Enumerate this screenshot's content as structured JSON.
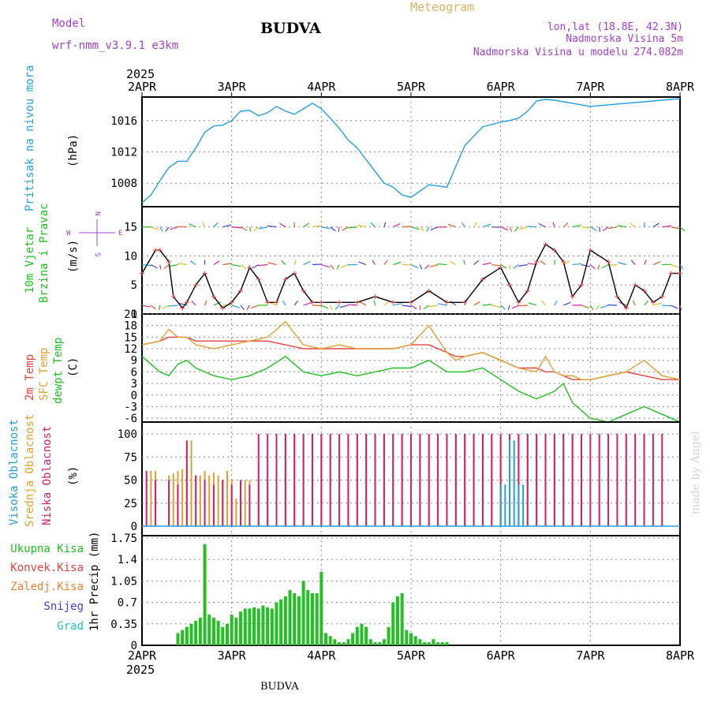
{
  "header": {
    "model_label": "Model",
    "model_name": "wrf-nmm_v3.9.1 e3km",
    "station": "BUDVA",
    "title": "Meteogram",
    "lonlat": "lon,lat (18.8E, 42.3N)",
    "altitude": "Nadmorska Visina 5m",
    "model_altitude": "Nadmorska Visina u modelu 274.082m",
    "footer_station": "BUDVA",
    "watermark": "made by Angel"
  },
  "colors": {
    "pressure": "#22a0e0",
    "temp2m": "#e84040",
    "sfctemp": "#e0a030",
    "dewpoint": "#20c020",
    "visoka": "#22a0e0",
    "srednja": "#e0a030",
    "niska": "#d0206a",
    "precip": "#22c022",
    "grid": "#888888",
    "purple": "#a040d0"
  },
  "chart_data": [
    {
      "type": "line",
      "panel": "pressure",
      "ylabel_blue": "Pritisak na nivou mora",
      "ylabel_black": "(hPa)",
      "yticks": [
        1008,
        1012,
        1016
      ],
      "ylim": [
        1005,
        1019
      ],
      "x_day_labels": [
        "2APR",
        "3APR",
        "4APR",
        "5APR",
        "6APR",
        "7APR",
        "8APR"
      ],
      "x_year": "2025",
      "x": [
        0,
        0.1,
        0.2,
        0.3,
        0.4,
        0.5,
        0.6,
        0.7,
        0.8,
        0.9,
        1.0,
        1.1,
        1.2,
        1.3,
        1.4,
        1.5,
        1.6,
        1.7,
        1.8,
        1.9,
        2.0,
        2.1,
        2.2,
        2.3,
        2.4,
        2.5,
        2.6,
        2.7,
        2.8,
        2.9,
        3.0,
        3.2,
        3.4,
        3.6,
        3.8,
        4.0,
        4.1,
        4.2,
        4.3,
        4.4,
        4.5,
        4.6,
        4.7,
        4.8,
        4.9,
        5.0,
        5.1,
        5.2,
        5.3,
        5.4,
        5.5,
        5.6,
        5.7,
        5.8,
        5.9,
        6.0
      ],
      "values": [
        1005.5,
        1006.5,
        1008.3,
        1010.0,
        1010.8,
        1010.8,
        1012.5,
        1014.5,
        1015.3,
        1015.4,
        1016.0,
        1017.2,
        1017.3,
        1016.6,
        1017.0,
        1017.8,
        1017.2,
        1016.8,
        1017.5,
        1018.2,
        1017.5,
        1016.3,
        1015.0,
        1013.5,
        1012.5,
        1011.0,
        1009.5,
        1008.0,
        1007.5,
        1006.5,
        1006.2,
        1007.8,
        1007.5,
        1012.8,
        1015.2,
        1015.8,
        1016.0,
        1016.3,
        1017.2,
        1018.5,
        1018.7,
        1018.6,
        1018.4,
        1018.2,
        1018.0,
        1017.8,
        1017.9,
        1018.0,
        1018.1,
        1018.2,
        1018.3,
        1018.4,
        1018.5,
        1018.6,
        1018.7,
        1018.8
      ]
    },
    {
      "type": "line",
      "panel": "wind",
      "ylabel_green": "10m Vjetar",
      "ylabel_green2": "Brzina i Pravac",
      "ylabel_black": "(m/s)",
      "compass": [
        "N",
        "W",
        "E",
        "S"
      ],
      "yticks": [
        0,
        5,
        10,
        15
      ],
      "ylim": [
        0,
        18.5
      ],
      "x": [
        0,
        0.15,
        0.2,
        0.3,
        0.35,
        0.45,
        0.5,
        0.6,
        0.7,
        0.8,
        0.9,
        1.0,
        1.1,
        1.2,
        1.3,
        1.4,
        1.5,
        1.6,
        1.7,
        1.8,
        1.9,
        2.0,
        2.2,
        2.4,
        2.6,
        2.8,
        3.0,
        3.2,
        3.4,
        3.6,
        3.8,
        4.0,
        4.1,
        4.2,
        4.3,
        4.4,
        4.5,
        4.6,
        4.7,
        4.8,
        4.9,
        5.0,
        5.2,
        5.3,
        5.4,
        5.5,
        5.6,
        5.7,
        5.8,
        5.9,
        6.0
      ],
      "values": [
        7,
        11,
        11,
        9,
        3,
        1,
        2,
        5,
        7,
        3,
        1,
        2,
        4,
        8,
        6,
        2,
        2,
        6,
        7,
        4,
        2,
        2,
        2,
        2,
        3,
        2,
        2,
        4,
        2,
        2,
        6,
        8,
        5,
        2,
        4,
        9,
        12,
        11,
        9,
        3,
        5,
        11,
        9,
        3,
        1,
        5,
        4,
        2,
        3,
        7,
        7
      ]
    },
    {
      "type": "line",
      "panel": "temperature",
      "ylabel_red": "2m Temp",
      "ylabel_orange": "SFC Temp",
      "ylabel_green": "dewpt Temp",
      "ylabel_black": "(C)",
      "yticks": [
        -6,
        -3,
        0,
        3,
        6,
        9,
        12,
        15,
        18,
        21
      ],
      "ylim": [
        -7,
        21
      ],
      "x": [
        0,
        0.2,
        0.3,
        0.4,
        0.5,
        0.6,
        0.8,
        1.0,
        1.2,
        1.4,
        1.6,
        1.8,
        2.0,
        2.2,
        2.4,
        2.6,
        2.8,
        3.0,
        3.2,
        3.4,
        3.5,
        3.6,
        3.8,
        4.0,
        4.2,
        4.4,
        4.5,
        4.6,
        4.7,
        4.8,
        4.9,
        5.0,
        5.2,
        5.4,
        5.6,
        5.8,
        6.0
      ],
      "series": [
        {
          "name": "2m Temp",
          "values": [
            13,
            14,
            15,
            15,
            15,
            14,
            14,
            14,
            14,
            14,
            13,
            12,
            12,
            12,
            12,
            12,
            12,
            13,
            13,
            11,
            10,
            10,
            11,
            9,
            7,
            7,
            6,
            6,
            5,
            4,
            4,
            4,
            5,
            6,
            5,
            4,
            4
          ]
        },
        {
          "name": "SFC Temp",
          "values": [
            13,
            14,
            17,
            15,
            15,
            13,
            12,
            13,
            14,
            15,
            19,
            13,
            12,
            13,
            12,
            12,
            12,
            13,
            18,
            11,
            9,
            10,
            11,
            9,
            7,
            6,
            10,
            6,
            5,
            5,
            4,
            4,
            5,
            6,
            9,
            5,
            4
          ]
        },
        {
          "name": "dewpt Temp",
          "values": [
            10,
            6,
            5,
            8,
            9,
            7,
            5,
            4,
            5,
            7,
            10,
            6,
            5,
            6,
            5,
            6,
            7,
            7,
            9,
            6,
            6,
            6,
            7,
            4,
            1,
            -1,
            0,
            1,
            3,
            -2,
            -4,
            -6,
            -7,
            -5,
            -3,
            -5,
            -7
          ]
        }
      ]
    },
    {
      "type": "bar",
      "panel": "cloud",
      "ylabel_blue": "Visoka Oblacnost",
      "ylabel_orange": "Srednja Oblacnost",
      "ylabel_magenta": "Niska Oblacnost",
      "ylabel_black": "(%)",
      "yticks": [
        0,
        25,
        50,
        75,
        100
      ],
      "ylim": [
        0,
        100
      ],
      "series": [
        {
          "name": "Srednja",
          "x": [
            0.1,
            0.15,
            0.3,
            0.35,
            0.4,
            0.45,
            0.5,
            0.55,
            0.6,
            0.65,
            0.7,
            0.75,
            0.8,
            0.85,
            0.9,
            0.95,
            1.0,
            1.05,
            1.1,
            1.15,
            1.2,
            1.3,
            1.4,
            1.5,
            1.6,
            1.7,
            1.8,
            1.9,
            2.0,
            2.1,
            2.2,
            2.3,
            2.4,
            2.5,
            2.6,
            2.7,
            2.8,
            2.9,
            3.0,
            3.1,
            3.2,
            3.3,
            3.4,
            3.5,
            3.6,
            3.7,
            3.8,
            3.9,
            4.0,
            4.1,
            4.2,
            4.3,
            4.4,
            4.5,
            4.6,
            4.7,
            4.8,
            4.9
          ],
          "values": [
            60,
            60,
            55,
            57,
            60,
            62,
            93,
            93,
            55,
            55,
            60,
            55,
            58,
            55,
            50,
            60,
            50,
            30,
            50,
            50,
            50,
            50,
            50,
            100,
            100,
            100,
            100,
            100,
            100,
            100,
            100,
            100,
            100,
            100,
            100,
            100,
            100,
            100,
            100,
            100,
            100,
            100,
            100,
            100,
            100,
            100,
            100,
            100,
            100,
            100,
            100,
            100,
            100,
            100,
            100,
            100,
            100,
            100
          ]
        },
        {
          "name": "Niska",
          "x": [
            0.05,
            0.15,
            0.3,
            0.4,
            0.5,
            0.6,
            0.7,
            0.8,
            0.9,
            1.0,
            1.1,
            1.2,
            1.3,
            1.4,
            1.5,
            1.6,
            1.7,
            1.8,
            1.9,
            2.0,
            2.1,
            2.2,
            2.3,
            2.4,
            2.5,
            2.6,
            2.7,
            2.8,
            2.9,
            3.0,
            3.1,
            3.2,
            3.3,
            3.4,
            3.5,
            3.6,
            3.7,
            3.8,
            3.9,
            4.0,
            4.1,
            4.2,
            4.3,
            4.4,
            4.5,
            4.6,
            4.7,
            4.8,
            4.9,
            5.0,
            5.1,
            5.2,
            5.3,
            5.4,
            5.5,
            5.6,
            5.7,
            5.8
          ],
          "values": [
            60,
            50,
            50,
            45,
            93,
            55,
            50,
            45,
            50,
            45,
            50,
            45,
            100,
            100,
            100,
            100,
            100,
            100,
            100,
            100,
            100,
            100,
            100,
            100,
            100,
            100,
            100,
            100,
            100,
            100,
            100,
            100,
            100,
            100,
            100,
            100,
            100,
            100,
            100,
            100,
            100,
            100,
            100,
            100,
            100,
            100,
            100,
            100,
            100,
            100,
            100,
            100,
            100,
            100,
            100,
            100,
            100,
            100
          ]
        },
        {
          "name": "Visoka",
          "x": [
            4.0,
            4.05,
            4.1,
            4.15,
            4.2,
            4.25
          ],
          "values": [
            45,
            45,
            93,
            93,
            45,
            45
          ]
        }
      ]
    },
    {
      "type": "bar",
      "panel": "precipitation",
      "legend": [
        "Ukupna Kisa",
        "Konvek.Kisa",
        "Zaledj.Kisa",
        "Snijeg",
        "Grad"
      ],
      "ylabel_black": "1hr Precip (mm)",
      "yticks": [
        0.35,
        0.7,
        1.05,
        1.4,
        1.75
      ],
      "ylim": [
        0,
        1.75
      ],
      "x_day_labels": [
        "2APR",
        "3APR",
        "4APR",
        "5APR",
        "6APR",
        "7APR",
        "8APR"
      ],
      "x_year": "2025",
      "x": [
        0.4,
        0.45,
        0.5,
        0.55,
        0.6,
        0.65,
        0.7,
        0.75,
        0.8,
        0.85,
        0.9,
        0.95,
        1.0,
        1.05,
        1.1,
        1.15,
        1.2,
        1.25,
        1.3,
        1.35,
        1.4,
        1.45,
        1.5,
        1.55,
        1.6,
        1.65,
        1.7,
        1.75,
        1.8,
        1.85,
        1.9,
        1.95,
        2.0,
        2.05,
        2.1,
        2.15,
        2.2,
        2.25,
        2.3,
        2.35,
        2.4,
        2.45,
        2.5,
        2.55,
        2.6,
        2.65,
        2.7,
        2.75,
        2.8,
        2.85,
        2.9,
        2.95,
        3.0,
        3.05,
        3.1,
        3.15,
        3.2,
        3.25,
        3.3,
        3.35,
        3.4
      ],
      "values": [
        0.2,
        0.25,
        0.3,
        0.35,
        0.4,
        0.45,
        1.65,
        0.5,
        0.45,
        0.4,
        0.3,
        0.35,
        0.5,
        0.45,
        0.55,
        0.6,
        0.6,
        0.62,
        0.6,
        0.65,
        0.62,
        0.6,
        0.7,
        0.75,
        0.8,
        0.9,
        0.85,
        0.8,
        1.05,
        0.9,
        0.85,
        0.85,
        1.2,
        0.2,
        0.15,
        0.1,
        0.05,
        0.05,
        0.1,
        0.2,
        0.3,
        0.35,
        0.3,
        0.1,
        0.05,
        0.05,
        0.1,
        0.3,
        0.7,
        0.8,
        0.85,
        0.25,
        0.2,
        0.15,
        0.1,
        0.05,
        0.05,
        0.1,
        0.05,
        0.05,
        0.05
      ]
    }
  ]
}
